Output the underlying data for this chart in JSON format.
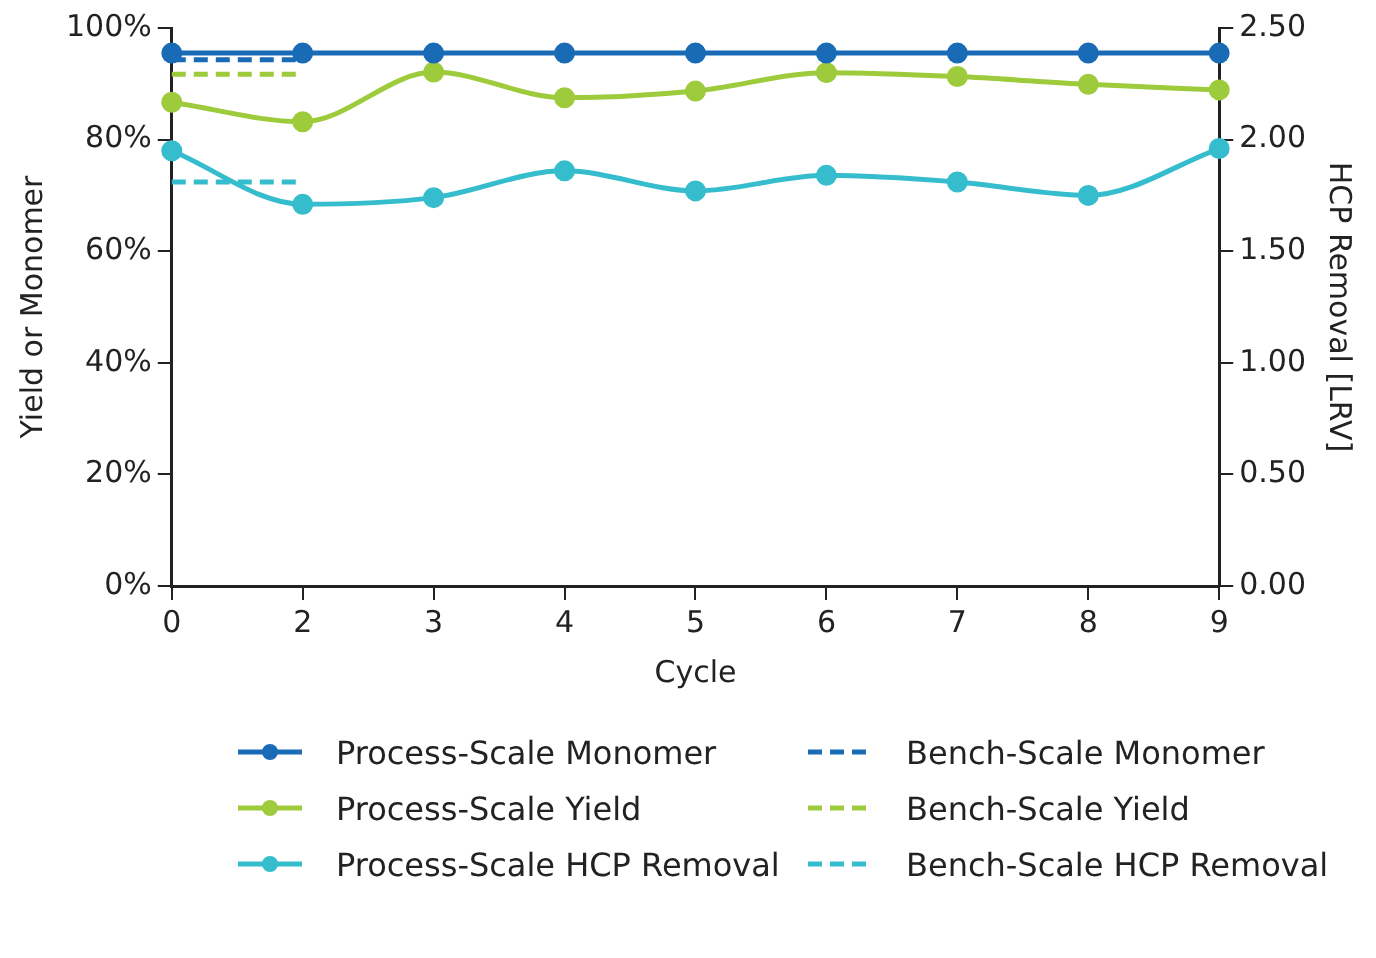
{
  "chart_data": {
    "type": "line",
    "xlabel": "Cycle",
    "ylabel": "Yield or Monomer",
    "y2label": "HCP Removal [LRV]",
    "categories": [
      "0",
      "2",
      "3",
      "4",
      "5",
      "6",
      "7",
      "8",
      "9"
    ],
    "ylim": [
      0,
      100
    ],
    "yticks": [
      {
        "value": 0,
        "label": "0%"
      },
      {
        "value": 20,
        "label": "20%"
      },
      {
        "value": 40,
        "label": "40%"
      },
      {
        "value": 60,
        "label": "60%"
      },
      {
        "value": 80,
        "label": "80%"
      },
      {
        "value": 100,
        "label": "100%"
      }
    ],
    "y2lim": [
      0,
      2.5
    ],
    "y2ticks": [
      {
        "value": 0,
        "label": "0.00"
      },
      {
        "value": 0.5,
        "label": "0.50"
      },
      {
        "value": 1,
        "label": "1.00"
      },
      {
        "value": 1.5,
        "label": "1.50"
      },
      {
        "value": 2,
        "label": "2.00"
      },
      {
        "value": 2.5,
        "label": "2.50"
      }
    ],
    "grid": false,
    "legend": "bottom",
    "series": [
      {
        "name": "Process-Scale Monomer",
        "color": "#1a6bb5",
        "marker": "circle",
        "line_style": "solid",
        "values": [
          95.5,
          95.5,
          95.5,
          95.5,
          95.5,
          95.5,
          95.5,
          95.5,
          95.5
        ]
      },
      {
        "name": "Bench-Scale Monomer",
        "color": "#1a6bb5",
        "marker": "none",
        "line_style": "dashed",
        "values": [
          94.3,
          94.3,
          null,
          null,
          null,
          null,
          null,
          null,
          null
        ]
      },
      {
        "name": "Process-Scale Yield",
        "color": "#9dcb3c",
        "marker": "circle",
        "line_style": "solid",
        "values": [
          86.7,
          83.2,
          92.1,
          87.5,
          88.7,
          92,
          91.3,
          89.9,
          88.9
        ]
      },
      {
        "name": "Bench-Scale Yield",
        "color": "#9dcb3c",
        "marker": "none",
        "line_style": "dashed",
        "values": [
          91.7,
          91.7,
          null,
          null,
          null,
          null,
          null,
          null,
          null
        ]
      },
      {
        "name": "Process-Scale HCP Removal",
        "color": "#35bccd",
        "marker": "circle",
        "line_style": "solid",
        "axis": "y2",
        "values": [
          1.95,
          1.71,
          1.74,
          1.86,
          1.77,
          1.84,
          1.81,
          1.75,
          1.96
        ]
      },
      {
        "name": "Bench-Scale HCP Removal",
        "color": "#35bccd",
        "marker": "none",
        "line_style": "dashed",
        "axis": "y2",
        "values": [
          1.81,
          1.81,
          null,
          null,
          null,
          null,
          null,
          null,
          null
        ]
      }
    ]
  }
}
